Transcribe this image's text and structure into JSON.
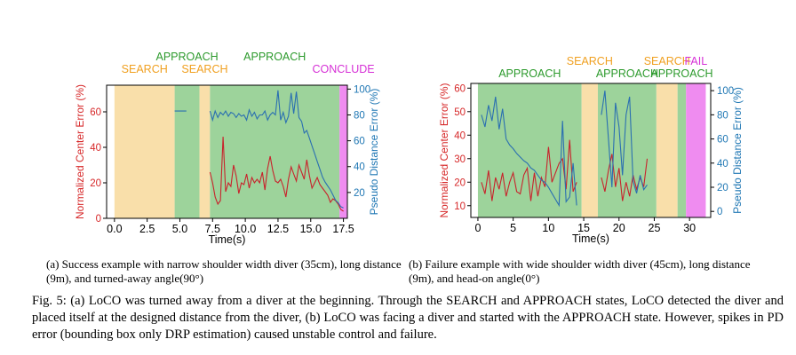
{
  "caption": {
    "subcaption_a": "(a) Success example with narrow shoulder width diver (35cm), long distance (9m), and turned-away angle(90°)",
    "subcaption_b": "(b) Failure example with wide shoulder width diver (45cm), long distance (9m), and head-on angle(0°)",
    "figure": "Fig. 5: (a) LoCO was turned away from a diver at the beginning. Through the SEARCH and APPROACH states, LoCO detected the diver and placed itself at the designed distance from the diver, (b) LoCO was facing a diver and started with the APPROACH state. However, spikes in PD error (bounding box only DRP estimation) caused unstable control and failure."
  },
  "colors": {
    "search": "#f9dfaa",
    "approach": "#9dd39b",
    "conclude": "#ef8cf0",
    "fail": "#ef8cf0",
    "center_error": "#c8232c",
    "pd_error": "#2a6fb1",
    "search_text": "#f0a020",
    "approach_text": "#2c9a2c",
    "conclude_text": "#d630d6",
    "left_axis_text": "#d62728",
    "right_axis_text": "#1f77b4"
  },
  "chart_data": [
    {
      "type": "line",
      "xlabel": "Time(s)",
      "ylabel": "Normalized Center Error (%)",
      "ylabel_right": "Pseudo Distance Error (%)",
      "xlim": [
        -0.6,
        17.8
      ],
      "ylim": [
        0,
        75
      ],
      "ylim_right": [
        0,
        103
      ],
      "xticks": [
        "0.0",
        "2.5",
        "5.0",
        "7.5",
        "10.0",
        "12.5",
        "15.0",
        "17.5"
      ],
      "yticks": [
        "0",
        "20",
        "40",
        "60"
      ],
      "yticks_right": [
        "20",
        "40",
        "60",
        "80",
        "100"
      ],
      "states": [
        {
          "label": "SEARCH",
          "kind": "search",
          "start": 0.0,
          "end": 4.6
        },
        {
          "label": "APPROACH",
          "kind": "approach",
          "start": 4.6,
          "end": 6.5
        },
        {
          "label": "SEARCH",
          "kind": "search",
          "start": 6.5,
          "end": 7.3
        },
        {
          "label": "APPROACH",
          "kind": "approach",
          "start": 7.3,
          "end": 17.2
        },
        {
          "label": "CONCLUDE",
          "kind": "conclude",
          "start": 17.2,
          "end": 17.8
        }
      ],
      "series": [
        {
          "axis": "left",
          "x": [
            4.6,
            5.5,
            7.3,
            7.5,
            7.7,
            7.9,
            8.1,
            8.3,
            8.5,
            8.7,
            8.9,
            9.1,
            9.3,
            9.5,
            9.7,
            9.9,
            10.1,
            10.3,
            10.5,
            10.7,
            10.9,
            11.1,
            11.3,
            11.5,
            11.7,
            11.9,
            12.1,
            12.3,
            12.5,
            12.7,
            12.9,
            13.1,
            13.3,
            13.5,
            13.7,
            13.9,
            14.1,
            14.3,
            14.5,
            14.7,
            14.9,
            15.1,
            15.3,
            15.5,
            15.7,
            15.9,
            16.1,
            16.3,
            16.5,
            16.7,
            16.9,
            17.1,
            17.3,
            17.5
          ],
          "values": [
            75,
            75,
            26,
            20,
            12,
            8,
            10,
            46,
            15,
            20,
            18,
            30,
            24,
            14,
            20,
            19,
            25,
            17,
            23,
            20,
            22,
            20,
            26,
            16,
            28,
            35,
            27,
            21,
            20,
            22,
            18,
            12,
            22,
            29,
            25,
            21,
            30,
            26,
            22,
            33,
            24,
            17,
            20,
            23,
            19,
            17,
            15,
            13,
            9,
            11,
            10,
            8,
            5,
            4
          ]
        },
        {
          "axis": "right",
          "x": [
            4.6,
            5.5,
            7.3,
            7.5,
            7.7,
            7.9,
            8.1,
            8.3,
            8.5,
            8.7,
            8.9,
            9.1,
            9.3,
            9.5,
            9.7,
            9.9,
            10.1,
            10.3,
            10.5,
            10.7,
            10.9,
            11.1,
            11.3,
            11.5,
            11.7,
            11.9,
            12.1,
            12.3,
            12.5,
            12.7,
            12.9,
            13.1,
            13.3,
            13.5,
            13.7,
            13.9,
            14.1,
            14.3,
            14.5,
            14.7,
            14.9,
            15.1,
            15.3,
            15.5,
            15.7,
            15.9,
            16.1,
            16.3,
            16.5,
            16.7,
            16.9,
            17.1,
            17.3,
            17.5
          ],
          "values": [
            83,
            83,
            83,
            76,
            83,
            78,
            82,
            80,
            83,
            79,
            82,
            81,
            78,
            81,
            79,
            80,
            76,
            84,
            79,
            82,
            77,
            80,
            80,
            83,
            76,
            80,
            82,
            80,
            99,
            76,
            82,
            74,
            79,
            97,
            81,
            98,
            78,
            75,
            66,
            68,
            62,
            56,
            50,
            44,
            38,
            32,
            28,
            25,
            22,
            18,
            14,
            12,
            9,
            8
          ]
        }
      ]
    },
    {
      "type": "line",
      "xlabel": "Time(s)",
      "ylabel": "Normalized Center Error (%)",
      "ylabel_right": "Pseudo Distance Error (%)",
      "xlim": [
        -1,
        33
      ],
      "ylim": [
        5,
        62
      ],
      "ylim_right": [
        -5,
        106
      ],
      "xticks": [
        "0",
        "5",
        "10",
        "15",
        "20",
        "25",
        "30"
      ],
      "yticks": [
        "10",
        "20",
        "30",
        "40",
        "50",
        "60"
      ],
      "yticks_right": [
        "0",
        "20",
        "40",
        "60",
        "80",
        "100"
      ],
      "states": [
        {
          "label": "APPROACH",
          "kind": "approach",
          "start": 0,
          "end": 14.7
        },
        {
          "label": "SEARCH",
          "kind": "search",
          "start": 14.7,
          "end": 17.0
        },
        {
          "label": "APPROACH",
          "kind": "approach",
          "start": 17.0,
          "end": 25.3
        },
        {
          "label": "SEARCH",
          "kind": "search",
          "start": 25.3,
          "end": 28.3
        },
        {
          "label": "APPROACH",
          "kind": "approach",
          "start": 28.3,
          "end": 29.5
        },
        {
          "label": "FAIL",
          "kind": "fail",
          "start": 29.5,
          "end": 32.3
        }
      ],
      "series": [
        {
          "axis": "left",
          "x": [
            0.5,
            1.0,
            1.5,
            2.0,
            2.5,
            3.0,
            3.5,
            4.0,
            4.5,
            5.0,
            5.5,
            6.0,
            6.5,
            7.0,
            7.5,
            8.0,
            8.5,
            9.0,
            9.5,
            10.0,
            10.5,
            11.0,
            11.5,
            12.0,
            12.5,
            13.0,
            13.5,
            14.0,
            17.5,
            18.0,
            18.5,
            19.0,
            19.5,
            20.0,
            20.5,
            21.0,
            21.5,
            22.0,
            22.5,
            23.0,
            23.5,
            24.0
          ],
          "values": [
            20,
            15,
            25,
            12,
            22,
            17,
            24,
            14,
            20,
            24,
            16,
            15,
            23,
            26,
            12,
            24,
            14,
            22,
            18,
            35,
            20,
            24,
            28,
            30,
            17,
            38,
            16,
            20,
            22,
            16,
            25,
            32,
            18,
            26,
            12,
            20,
            14,
            23,
            17,
            22,
            18,
            30
          ]
        },
        {
          "axis": "right",
          "x": [
            0.5,
            1.0,
            1.5,
            2.0,
            2.5,
            3.0,
            3.5,
            4.0,
            4.5,
            5.0,
            5.5,
            6.0,
            6.5,
            7.0,
            7.5,
            8.0,
            8.5,
            9.0,
            9.5,
            10.0,
            10.5,
            11.0,
            11.5,
            12.0,
            12.5,
            13.0,
            13.5,
            14.0,
            17.5,
            18.0,
            18.5,
            19.0,
            19.5,
            20.0,
            20.5,
            21.0,
            21.5,
            22.0,
            22.5,
            23.0,
            23.5,
            24.0
          ],
          "values": [
            80,
            70,
            88,
            75,
            95,
            68,
            85,
            60,
            55,
            52,
            48,
            45,
            42,
            40,
            36,
            34,
            30,
            26,
            24,
            20,
            15,
            10,
            5,
            75,
            8,
            12,
            40,
            5,
            80,
            100,
            60,
            20,
            90,
            70,
            30,
            80,
            95,
            25,
            15,
            30,
            18,
            22
          ]
        }
      ]
    }
  ]
}
